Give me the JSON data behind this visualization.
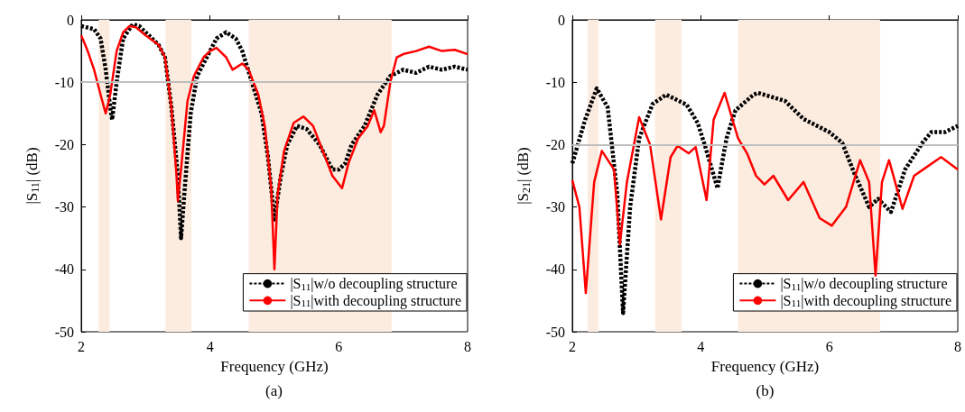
{
  "chart_data": [
    {
      "type": "line",
      "xlabel": "Frequency (GHz)",
      "ylabel": "|S$_{11}$| (dB)",
      "annotations": [
        "(a)"
      ],
      "xlim": [
        2,
        8
      ],
      "xticks": [
        2,
        4,
        6,
        8
      ],
      "ylim": [
        -50,
        0
      ],
      "yticks": [
        -50,
        -40,
        -30,
        -20,
        -10,
        0
      ],
      "grid": false,
      "legend": "bottom right",
      "marker": "none",
      "ref_lines": [
        {
          "axis": "y",
          "value": -10,
          "color": "#bfbfbf"
        }
      ],
      "bands": [
        {
          "axis": "x",
          "from": 2.27,
          "to": 2.44,
          "color": "#fcebdf"
        },
        {
          "axis": "x",
          "from": 3.31,
          "to": 3.71,
          "color": "#fcebdf"
        },
        {
          "axis": "x",
          "from": 4.6,
          "to": 6.82,
          "color": "#fcebdf"
        }
      ],
      "series": [
        {
          "name": "|S$_{11}$|w/o decoupling structure",
          "color": "#000000",
          "line_style": "dashed",
          "x": [
            2,
            2.2,
            2.3,
            2.38,
            2.45,
            2.48,
            2.55,
            2.65,
            2.8,
            2.9,
            3.0,
            3.2,
            3.3,
            3.4,
            3.5,
            3.55,
            3.6,
            3.7,
            3.8,
            4.0,
            4.1,
            4.25,
            4.4,
            4.5,
            4.65,
            4.8,
            4.9,
            5.0,
            5.1,
            5.2,
            5.35,
            5.5,
            5.7,
            5.9,
            6.0,
            6.1,
            6.2,
            6.4,
            6.6,
            6.8,
            7.0,
            7.2,
            7.4,
            7.6,
            7.8,
            8.0
          ],
          "values": [
            -1,
            -1.5,
            -3,
            -8,
            -14,
            -16,
            -10,
            -3,
            -0.7,
            -1,
            -2,
            -4,
            -6,
            -14,
            -25,
            -35,
            -28,
            -15,
            -9,
            -5,
            -3,
            -2,
            -3,
            -5,
            -10,
            -15,
            -22,
            -32,
            -25,
            -20,
            -17,
            -17.5,
            -20,
            -24,
            -24,
            -23,
            -20,
            -17,
            -12,
            -9,
            -8,
            -8.5,
            -7.5,
            -8,
            -7.5,
            -8
          ]
        },
        {
          "name": "|S$_{11}$|with decoupling structure",
          "color": "#ff0000",
          "line_style": "solid",
          "x": [
            2,
            2.1,
            2.2,
            2.3,
            2.38,
            2.45,
            2.55,
            2.65,
            2.75,
            2.85,
            3.0,
            3.2,
            3.3,
            3.4,
            3.48,
            3.5,
            3.55,
            3.65,
            3.75,
            3.9,
            4.0,
            4.1,
            4.25,
            4.35,
            4.5,
            4.6,
            4.75,
            4.85,
            4.95,
            5.0,
            5.05,
            5.15,
            5.3,
            5.45,
            5.6,
            5.75,
            5.9,
            6.05,
            6.15,
            6.3,
            6.45,
            6.55,
            6.65,
            6.7,
            6.8,
            6.9,
            7.0,
            7.2,
            7.4,
            7.6,
            7.8,
            8.0
          ],
          "values": [
            -2.5,
            -5,
            -8,
            -12,
            -15,
            -12,
            -5,
            -2,
            -1,
            -1.2,
            -2.5,
            -4,
            -6,
            -14,
            -25,
            -29,
            -24,
            -13,
            -9,
            -6,
            -5,
            -4.5,
            -6,
            -8,
            -7,
            -8,
            -12,
            -17,
            -27,
            -40,
            -28,
            -21,
            -16.5,
            -15.5,
            -17,
            -21,
            -25,
            -27,
            -23,
            -19,
            -17,
            -14.5,
            -18,
            -17,
            -10,
            -6,
            -5.5,
            -5,
            -4.3,
            -5,
            -4.8,
            -5.5
          ]
        }
      ]
    },
    {
      "type": "line",
      "xlabel": "Frequency (GHz)",
      "ylabel": "|S$_{21}$| (dB)",
      "annotations": [
        "(b)"
      ],
      "xlim": [
        2,
        8
      ],
      "xticks": [
        2,
        4,
        6,
        8
      ],
      "ylim": [
        -50,
        0
      ],
      "yticks": [
        -50,
        -40,
        -30,
        -20,
        -10,
        0
      ],
      "grid": false,
      "legend": "bottom right",
      "marker": "none",
      "ref_lines": [
        {
          "axis": "y",
          "value": -20,
          "color": "#bfbfbf"
        }
      ],
      "bands": [
        {
          "axis": "x",
          "from": 2.24,
          "to": 2.41,
          "color": "#fcebdf"
        },
        {
          "axis": "x",
          "from": 3.29,
          "to": 3.7,
          "color": "#fcebdf"
        },
        {
          "axis": "x",
          "from": 4.58,
          "to": 6.79,
          "color": "#fcebdf"
        }
      ],
      "series": [
        {
          "name": "|S$_{11}$|w/o decoupling structure",
          "color": "#000000",
          "line_style": "dashed",
          "x": [
            2,
            2.2,
            2.38,
            2.55,
            2.7,
            2.79,
            2.9,
            3.04,
            3.25,
            3.46,
            3.78,
            3.95,
            4.06,
            4.26,
            4.4,
            4.54,
            4.82,
            4.89,
            5.31,
            5.6,
            6.0,
            6.2,
            6.39,
            6.62,
            6.76,
            6.96,
            7.18,
            7.45,
            7.59,
            7.8,
            8.0
          ],
          "values": [
            -23,
            -16,
            -11,
            -14,
            -28,
            -47,
            -30,
            -19,
            -13.5,
            -12,
            -13.6,
            -16.5,
            -20,
            -27,
            -19,
            -14.5,
            -12,
            -11.7,
            -13,
            -15.9,
            -18,
            -19.7,
            -24.6,
            -30,
            -28.7,
            -30.8,
            -24,
            -19.7,
            -18,
            -18,
            -17
          ]
        },
        {
          "name": "|S$_{11}$|with decoupling structure",
          "color": "#ff0000",
          "line_style": "solid",
          "x": [
            2,
            2.11,
            2.21,
            2.34,
            2.46,
            2.65,
            2.74,
            2.85,
            3.04,
            3.21,
            3.38,
            3.53,
            3.64,
            3.81,
            3.92,
            4.09,
            4.2,
            4.37,
            4.58,
            4.72,
            4.86,
            4.99,
            5.13,
            5.36,
            5.6,
            5.85,
            6.04,
            6.26,
            6.48,
            6.62,
            6.72,
            6.82,
            6.93,
            7.14,
            7.32,
            7.74,
            8.0
          ],
          "values": [
            -25.7,
            -30,
            -43.8,
            -26,
            -21,
            -24,
            -36,
            -26,
            -15.6,
            -20,
            -32,
            -22,
            -20.2,
            -21.4,
            -20.4,
            -28.9,
            -16,
            -11.7,
            -19,
            -21.4,
            -25,
            -26.4,
            -25,
            -28.9,
            -26,
            -31.8,
            -33,
            -30,
            -22.5,
            -26,
            -41,
            -26,
            -22.5,
            -30.3,
            -25,
            -22,
            -24
          ]
        }
      ]
    }
  ]
}
